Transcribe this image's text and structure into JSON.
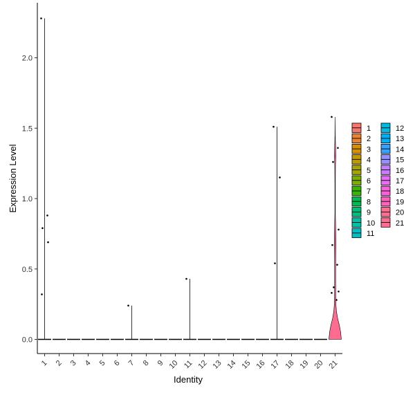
{
  "chart_data": {
    "type": "violin",
    "title": "",
    "xlabel": "Identity",
    "ylabel": "Expression Level",
    "ylim": [
      -0.1,
      2.37
    ],
    "yticks": [
      0.0,
      0.5,
      1.0,
      1.5,
      2.0
    ],
    "ytick_labels": [
      "0.0",
      "0.5",
      "1.0",
      "1.5",
      "2.0"
    ],
    "categories": [
      "1",
      "2",
      "3",
      "4",
      "5",
      "6",
      "7",
      "8",
      "9",
      "10",
      "11",
      "12",
      "13",
      "14",
      "15",
      "16",
      "17",
      "18",
      "19",
      "20",
      "21"
    ],
    "colors": [
      "#F8766D",
      "#EA8331",
      "#D89000",
      "#C09B00",
      "#A3A500",
      "#7CAE00",
      "#39B600",
      "#00BB4E",
      "#00BF7D",
      "#00C1A3",
      "#00BFC4",
      "#00BAE0",
      "#00B0F6",
      "#35A2FF",
      "#9590FF",
      "#C77CFF",
      "#E76BF3",
      "#FA62DB",
      "#FF62BC",
      "#FF6C91",
      "#FF6C91"
    ],
    "max_values": [
      2.28,
      0,
      0,
      0,
      0,
      0,
      0.24,
      0,
      0,
      0,
      0.43,
      0,
      0,
      0,
      0,
      0,
      1.51,
      0,
      0,
      0,
      1.58
    ],
    "points": [
      {
        "group": "1",
        "values": [
          2.28,
          0.88,
          0.79,
          0.69,
          0.32
        ]
      },
      {
        "group": "7",
        "values": [
          0.24
        ]
      },
      {
        "group": "11",
        "values": [
          0.43
        ]
      },
      {
        "group": "17",
        "values": [
          1.51,
          1.15,
          0.54
        ]
      },
      {
        "group": "21",
        "values": [
          1.58,
          1.36,
          1.26,
          0.78,
          0.67,
          0.53,
          0.37,
          0.34,
          0.33,
          0.28
        ]
      }
    ],
    "violin_21_density": [
      [
        0.0,
        0.95
      ],
      [
        0.05,
        0.85
      ],
      [
        0.1,
        0.65
      ],
      [
        0.15,
        0.38
      ],
      [
        0.2,
        0.2
      ],
      [
        0.25,
        0.12
      ],
      [
        0.3,
        0.1
      ],
      [
        0.4,
        0.08
      ],
      [
        0.5,
        0.08
      ],
      [
        0.6,
        0.1
      ],
      [
        0.7,
        0.13
      ],
      [
        0.78,
        0.1
      ],
      [
        0.9,
        0.03
      ],
      [
        1.1,
        0.03
      ],
      [
        1.25,
        0.06
      ],
      [
        1.3,
        0.12
      ],
      [
        1.36,
        0.08
      ],
      [
        1.45,
        0.02
      ],
      [
        1.58,
        0.0
      ]
    ],
    "legend": {
      "placement": "right",
      "columns": [
        [
          "1",
          "2",
          "3",
          "4",
          "5",
          "6",
          "7",
          "8",
          "9",
          "10",
          "11"
        ],
        [
          "12",
          "13",
          "14",
          "15",
          "16",
          "17",
          "18",
          "19",
          "20",
          "21"
        ]
      ]
    },
    "grid": false
  }
}
